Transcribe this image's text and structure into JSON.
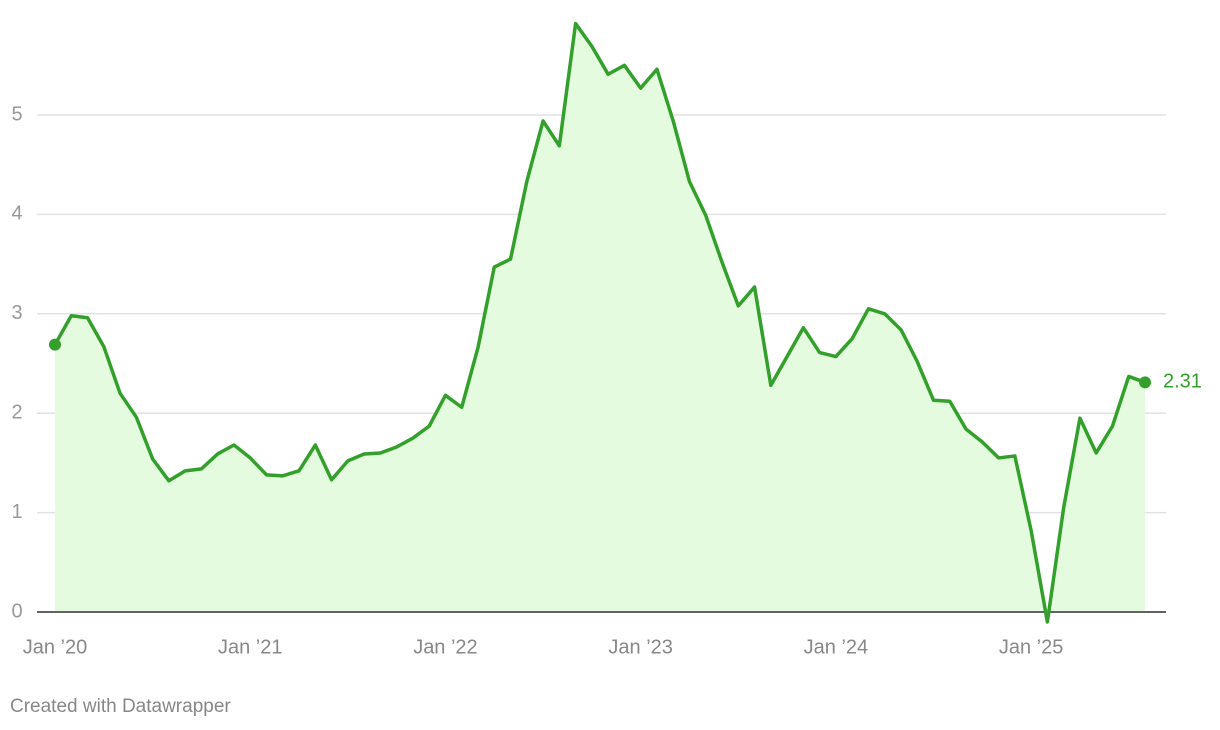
{
  "chart_data": {
    "type": "area",
    "x": [
      "2020-01",
      "2020-02",
      "2020-03",
      "2020-04",
      "2020-05",
      "2020-06",
      "2020-07",
      "2020-08",
      "2020-09",
      "2020-10",
      "2020-11",
      "2020-12",
      "2021-01",
      "2021-02",
      "2021-03",
      "2021-04",
      "2021-05",
      "2021-06",
      "2021-07",
      "2021-08",
      "2021-09",
      "2021-10",
      "2021-11",
      "2021-12",
      "2022-01",
      "2022-02",
      "2022-03",
      "2022-04",
      "2022-05",
      "2022-06",
      "2022-07",
      "2022-08",
      "2022-09",
      "2022-10",
      "2022-11",
      "2022-12",
      "2023-01",
      "2023-02",
      "2023-03",
      "2023-04",
      "2023-05",
      "2023-06",
      "2023-07",
      "2023-08",
      "2023-09",
      "2023-10",
      "2023-11",
      "2023-12",
      "2024-01",
      "2024-02",
      "2024-03",
      "2024-04",
      "2024-05",
      "2024-06",
      "2024-07",
      "2024-08",
      "2024-09",
      "2024-10",
      "2024-11",
      "2024-12",
      "2025-01",
      "2025-02",
      "2025-03",
      "2025-04",
      "2025-05",
      "2025-06",
      "2025-07",
      "2025-08"
    ],
    "values": [
      2.69,
      2.98,
      2.96,
      2.67,
      2.2,
      1.96,
      1.54,
      1.32,
      1.42,
      1.44,
      1.59,
      1.68,
      1.55,
      1.38,
      1.37,
      1.42,
      1.68,
      1.33,
      1.52,
      1.59,
      1.6,
      1.66,
      1.75,
      1.87,
      2.18,
      2.06,
      2.66,
      3.47,
      3.55,
      4.33,
      4.94,
      4.69,
      5.92,
      5.69,
      5.41,
      5.5,
      5.27,
      5.46,
      4.94,
      4.33,
      3.99,
      3.52,
      3.08,
      3.27,
      2.28,
      2.57,
      2.86,
      2.61,
      2.57,
      2.75,
      3.05,
      3.0,
      2.84,
      2.52,
      2.13,
      2.12,
      1.84,
      1.71,
      1.55,
      1.57,
      0.82,
      -0.1,
      1.05,
      1.95,
      1.6,
      1.87,
      2.37,
      2.31
    ],
    "color": "#33a02c",
    "fill": "#e5fbe0",
    "ylim": [
      0,
      6
    ],
    "yticks": [
      0,
      1,
      2,
      3,
      4,
      5
    ],
    "grid": true,
    "xticks": [
      {
        "value": "2020-01",
        "label": "Jan ’20"
      },
      {
        "value": "2021-01",
        "label": "Jan ’21"
      },
      {
        "value": "2022-01",
        "label": "Jan ’22"
      },
      {
        "value": "2023-01",
        "label": "Jan ’23"
      },
      {
        "value": "2024-01",
        "label": "Jan ’24"
      },
      {
        "value": "2025-01",
        "label": "Jan ’25"
      }
    ],
    "footer": "Created with Datawrapper"
  }
}
